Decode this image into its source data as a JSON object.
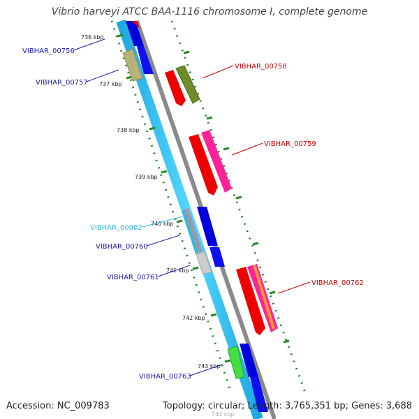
{
  "title": "Vibrio harveyi ATCC BAA-1116 chromosome I, complete genome",
  "footer": {
    "accession": "Accession: NC_009783",
    "topology": "Topology: circular; Length: 3,765,351 bp; Genes: 3,688"
  },
  "ticks": [
    {
      "label": "736 kbp"
    },
    {
      "label": "737 kbp"
    },
    {
      "label": "738 kbp"
    },
    {
      "label": "739 kbp"
    },
    {
      "label": "740 kbp"
    },
    {
      "label": "741 kbp"
    },
    {
      "label": "742 kbp"
    },
    {
      "label": "743 kbp"
    },
    {
      "label": "744 kbp"
    }
  ],
  "genes": [
    {
      "label": "VIBHAR_00756",
      "color": "#1a1aa8"
    },
    {
      "label": "VIBHAR_00757",
      "color": "#1a1aa8"
    },
    {
      "label": "VIBHAR_00758",
      "color": "#cc0000"
    },
    {
      "label": "VIBHAR_00759",
      "color": "#cc0000"
    },
    {
      "label": "VIBHAR_00002",
      "color": "#33bbdd"
    },
    {
      "label": "VIBHAR_00760",
      "color": "#1a1aa8"
    },
    {
      "label": "VIBHAR_00761",
      "color": "#1a1aa8"
    },
    {
      "label": "VIBHAR_00762",
      "color": "#cc0000"
    },
    {
      "label": "VIBHAR_00763",
      "color": "#1a1aa8"
    }
  ],
  "colors": {
    "backbone": "#888888",
    "feature_track": "#33ccff",
    "cds_forward": "#ff0000",
    "cds_reverse": "#0000ee",
    "tick": "#228822"
  }
}
